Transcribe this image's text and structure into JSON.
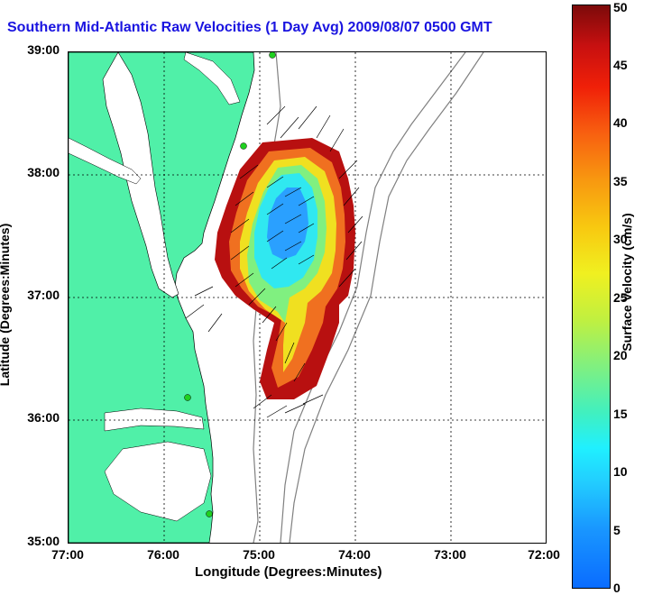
{
  "title": "Southern Mid-Atlantic Raw Velocities (1 Day Avg) 2009/08/07 0500 GMT",
  "axes": {
    "x_label": "Longitude (Degrees:Minutes)",
    "y_label": "Latitude (Degrees:Minutes)",
    "x_ticks": [
      "77:00",
      "76:00",
      "75:00",
      "74:00",
      "73:00",
      "72:00"
    ],
    "y_ticks": [
      "39:00",
      "38:00",
      "37:00",
      "36:00",
      "35:00"
    ]
  },
  "colorbar": {
    "label": "Surface Velocity (cm/s)",
    "ticks": [
      "0",
      "5",
      "10",
      "15",
      "20",
      "25",
      "30",
      "35",
      "40",
      "45",
      "50"
    ],
    "min": 0,
    "max": 50
  },
  "colors": {
    "land": "#50f0a8",
    "water": "#ffffff",
    "coastline": "#000000",
    "bathymetry": "#808080",
    "title": "#1a14e0",
    "stations": "#20d020"
  }
}
